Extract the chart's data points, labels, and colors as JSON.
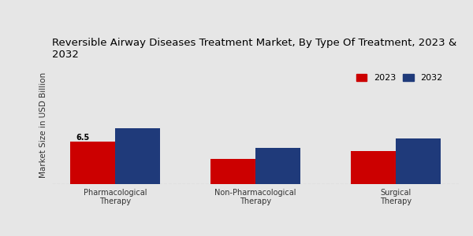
{
  "title": "Reversible Airway Diseases Treatment Market, By Type Of Treatment, 2023 &\n2032",
  "ylabel": "Market Size in USD Billion",
  "categories": [
    "Pharmacological\nTherapy",
    "Non-Pharmacological\nTherapy",
    "Surgical\nTherapy"
  ],
  "values_2023": [
    6.5,
    3.8,
    5.0
  ],
  "values_2032": [
    8.5,
    5.5,
    7.0
  ],
  "color_2023": "#cc0000",
  "color_2032": "#1f3a7a",
  "bar_annotation": "6.5",
  "annotation_bar_index": 0,
  "background_color": "#e6e6e6",
  "legend_labels": [
    "2023",
    "2032"
  ],
  "ylim": [
    0,
    18
  ],
  "bar_width": 0.32,
  "title_fontsize": 9.5,
  "axis_fontsize": 7.5,
  "tick_fontsize": 7.0,
  "legend_fontsize": 8.0
}
